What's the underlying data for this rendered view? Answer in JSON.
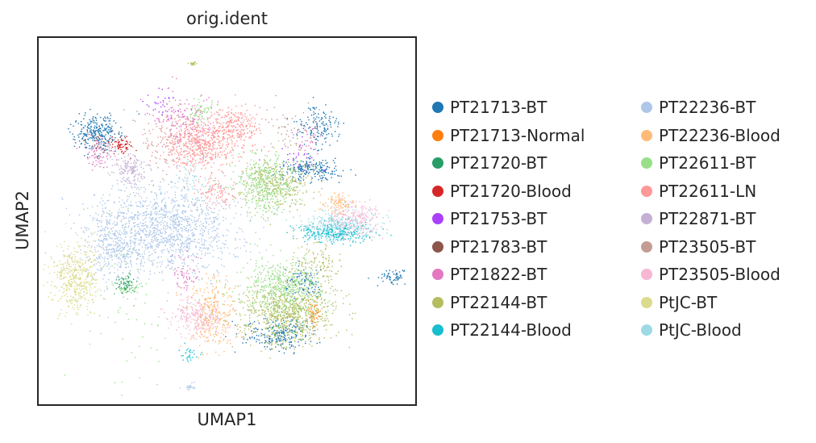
{
  "chart_data": {
    "type": "scatter",
    "title": "orig.ident",
    "xlabel": "UMAP1",
    "ylabel": "UMAP2",
    "xlim": [
      0,
      100
    ],
    "ylim": [
      0,
      100
    ],
    "grid": false,
    "ticks": "none",
    "legend_position": "right",
    "legend_columns": 2,
    "legend": [
      {
        "name": "PT21713-BT",
        "color": "#1f77b4"
      },
      {
        "name": "PT21713-Normal",
        "color": "#ff7f0e"
      },
      {
        "name": "PT21720-BT",
        "color": "#279e68"
      },
      {
        "name": "PT21720-Blood",
        "color": "#d62728"
      },
      {
        "name": "PT21753-BT",
        "color": "#aa40fc"
      },
      {
        "name": "PT21783-BT",
        "color": "#8c564b"
      },
      {
        "name": "PT21822-BT",
        "color": "#e377c2"
      },
      {
        "name": "PT22144-BT",
        "color": "#b5bd61"
      },
      {
        "name": "PT22144-Blood",
        "color": "#17becf"
      },
      {
        "name": "PT22236-BT",
        "color": "#aec7e8"
      },
      {
        "name": "PT22236-Blood",
        "color": "#ffbb78"
      },
      {
        "name": "PT22611-BT",
        "color": "#98df8a"
      },
      {
        "name": "PT22611-LN",
        "color": "#ff9896"
      },
      {
        "name": "PT22871-BT",
        "color": "#c5b0d5"
      },
      {
        "name": "PT23505-BT",
        "color": "#c49c94"
      },
      {
        "name": "PT23505-Blood",
        "color": "#f7b6d2"
      },
      {
        "name": "PtJC-BT",
        "color": "#dbdb8d"
      },
      {
        "name": "PtJC-Blood",
        "color": "#9edae5"
      }
    ],
    "clusters": [
      {
        "series": "PT22236-BT",
        "x": 34,
        "y": 48,
        "sx": 9,
        "sy": 6,
        "n": 1300
      },
      {
        "series": "PT22236-BT",
        "x": 20,
        "y": 44,
        "sx": 4,
        "sy": 5,
        "n": 350
      },
      {
        "series": "PT22611-LN",
        "x": 42,
        "y": 71,
        "sx": 5,
        "sy": 3.5,
        "n": 550
      },
      {
        "series": "PT22611-LN",
        "x": 52,
        "y": 76,
        "sx": 3,
        "sy": 3,
        "n": 260
      },
      {
        "series": "PT22611-LN",
        "x": 47,
        "y": 58,
        "sx": 3,
        "sy": 2,
        "n": 100
      },
      {
        "series": "PT22611-BT",
        "x": 60,
        "y": 60,
        "sx": 4,
        "sy": 4,
        "n": 450
      },
      {
        "series": "PT22611-BT",
        "x": 65,
        "y": 32,
        "sx": 5,
        "sy": 4,
        "n": 550
      },
      {
        "series": "PT22611-BT",
        "x": 43,
        "y": 80,
        "sx": 2,
        "sy": 1.5,
        "n": 60
      },
      {
        "series": "PT22611-BT",
        "x": 24,
        "y": 32,
        "sx": 1.5,
        "sy": 1.2,
        "n": 40
      },
      {
        "series": "PT22144-BT",
        "x": 66,
        "y": 25,
        "sx": 6,
        "sy": 4,
        "n": 750
      },
      {
        "series": "PT22144-BT",
        "x": 64,
        "y": 60,
        "sx": 5,
        "sy": 3.5,
        "n": 300
      },
      {
        "series": "PT22144-BT",
        "x": 74,
        "y": 38,
        "sx": 3,
        "sy": 3,
        "n": 120
      },
      {
        "series": "PT21713-BT",
        "x": 15,
        "y": 74,
        "sx": 3,
        "sy": 2.5,
        "n": 260
      },
      {
        "series": "PT21713-BT",
        "x": 72,
        "y": 64,
        "sx": 4,
        "sy": 1.5,
        "n": 200
      },
      {
        "series": "PT21713-BT",
        "x": 63,
        "y": 19,
        "sx": 5,
        "sy": 2,
        "n": 200
      },
      {
        "series": "PT21713-BT",
        "x": 74,
        "y": 76,
        "sx": 3,
        "sy": 2.5,
        "n": 140
      },
      {
        "series": "PT21713-BT",
        "x": 70,
        "y": 33,
        "sx": 2,
        "sy": 2,
        "n": 90
      },
      {
        "series": "PT21713-BT",
        "x": 94,
        "y": 35,
        "sx": 1.5,
        "sy": 1,
        "n": 60
      },
      {
        "series": "PtJC-BT",
        "x": 10,
        "y": 35,
        "sx": 3,
        "sy": 4.5,
        "n": 450
      },
      {
        "series": "PT22144-Blood",
        "x": 78,
        "y": 47,
        "sx": 5,
        "sy": 1.3,
        "n": 260
      },
      {
        "series": "PtJC-Blood",
        "x": 79,
        "y": 49,
        "sx": 5,
        "sy": 2,
        "n": 320
      },
      {
        "series": "PtJC-Blood",
        "x": 40,
        "y": 62,
        "sx": 3,
        "sy": 3,
        "n": 60
      },
      {
        "series": "PT23505-Blood",
        "x": 84,
        "y": 51,
        "sx": 3.5,
        "sy": 2.5,
        "n": 200
      },
      {
        "series": "PT23505-Blood",
        "x": 42,
        "y": 24,
        "sx": 3.5,
        "sy": 2.5,
        "n": 240
      },
      {
        "series": "PT22236-Blood",
        "x": 46,
        "y": 25,
        "sx": 3,
        "sy": 5,
        "n": 300
      },
      {
        "series": "PT22236-Blood",
        "x": 79,
        "y": 55,
        "sx": 2,
        "sy": 1.5,
        "n": 100
      },
      {
        "series": "PT22871-BT",
        "x": 24,
        "y": 64,
        "sx": 2.5,
        "sy": 2,
        "n": 160
      },
      {
        "series": "PT22871-BT",
        "x": 17,
        "y": 70,
        "sx": 1.5,
        "sy": 1.5,
        "n": 40
      },
      {
        "series": "PT21720-Blood",
        "x": 22,
        "y": 71,
        "sx": 1.5,
        "sy": 1.2,
        "n": 70
      },
      {
        "series": "PT21720-BT",
        "x": 23,
        "y": 33,
        "sx": 1.5,
        "sy": 1.5,
        "n": 60
      },
      {
        "series": "PT21720-BT",
        "x": 66,
        "y": 21,
        "sx": 3,
        "sy": 2,
        "n": 40
      },
      {
        "series": "PT21822-BT",
        "x": 38,
        "y": 77,
        "sx": 4,
        "sy": 4,
        "n": 160
      },
      {
        "series": "PT21822-BT",
        "x": 39,
        "y": 36,
        "sx": 2,
        "sy": 3,
        "n": 60
      },
      {
        "series": "PT21822-BT",
        "x": 16,
        "y": 68,
        "sx": 2,
        "sy": 2,
        "n": 60
      },
      {
        "series": "PT21822-BT",
        "x": 71,
        "y": 72,
        "sx": 2,
        "sy": 2,
        "n": 40
      },
      {
        "series": "PT23505-BT",
        "x": 35,
        "y": 72,
        "sx": 5,
        "sy": 5,
        "n": 100
      },
      {
        "series": "PT23505-BT",
        "x": 67,
        "y": 76,
        "sx": 4,
        "sy": 4,
        "n": 50
      },
      {
        "series": "PT21753-BT",
        "x": 70,
        "y": 67,
        "sx": 3,
        "sy": 2,
        "n": 30
      },
      {
        "series": "PT21753-BT",
        "x": 33,
        "y": 82,
        "sx": 2,
        "sy": 1.5,
        "n": 30
      },
      {
        "series": "PT21783-BT",
        "x": 16,
        "y": 71,
        "sx": 2,
        "sy": 2,
        "n": 40
      },
      {
        "series": "PT21713-Normal",
        "x": 73,
        "y": 25,
        "sx": 1,
        "sy": 2,
        "n": 40
      },
      {
        "series": "PT22144-BT",
        "x": 41,
        "y": 93,
        "sx": 0.6,
        "sy": 0.3,
        "n": 15
      },
      {
        "series": "PT22236-BT",
        "x": 40,
        "y": 5,
        "sx": 0.8,
        "sy": 0.5,
        "n": 20
      },
      {
        "series": "PT22144-Blood",
        "x": 40,
        "y": 14,
        "sx": 1.5,
        "sy": 1,
        "n": 30
      },
      {
        "series": "PT22611-BT",
        "x": 24,
        "y": 30,
        "sx": 6,
        "sy": 14,
        "n": 80
      }
    ]
  }
}
